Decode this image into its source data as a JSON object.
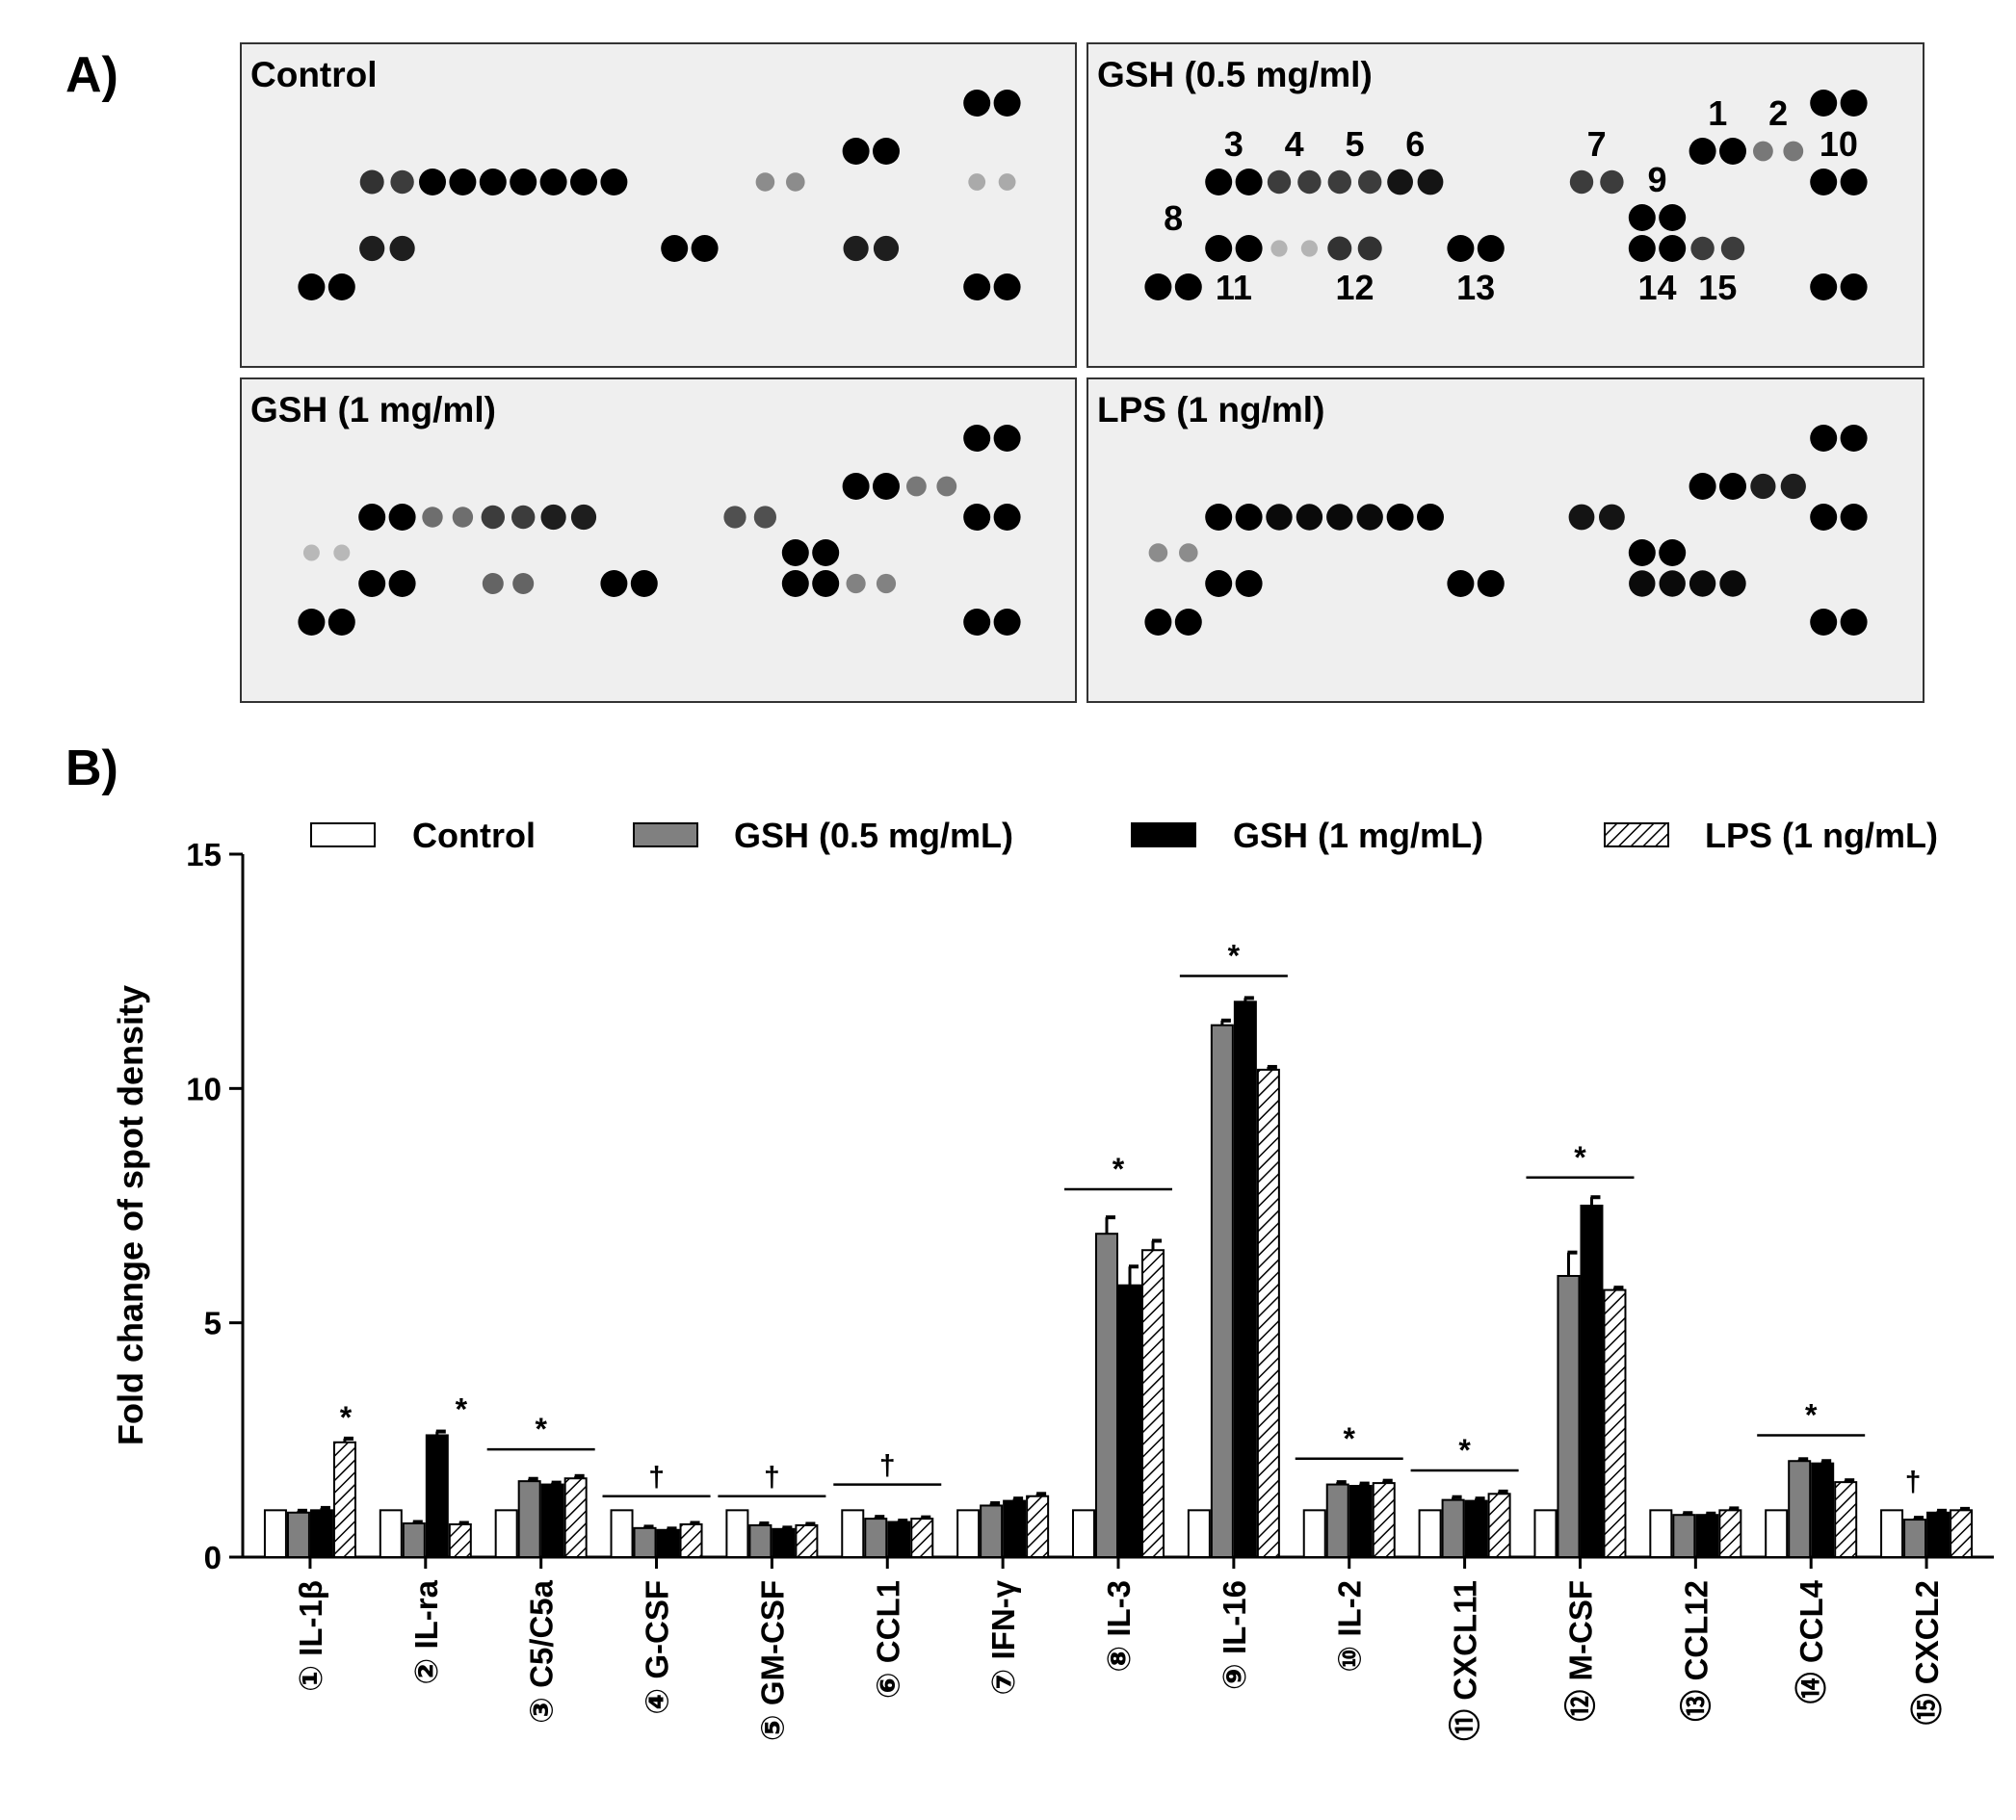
{
  "panel_a": {
    "label": "A)",
    "blots": [
      {
        "title": "Control",
        "spots": [
          {
            "col": 23,
            "row": 0,
            "i": 1.0
          },
          {
            "col": 24,
            "row": 0,
            "i": 1.0
          },
          {
            "col": 19,
            "row": 1,
            "i": 1.0
          },
          {
            "col": 20,
            "row": 1,
            "i": 1.0
          },
          {
            "col": 3,
            "row": 2,
            "i": 0.75
          },
          {
            "col": 4,
            "row": 2,
            "i": 0.7
          },
          {
            "col": 5,
            "row": 2,
            "i": 1.0
          },
          {
            "col": 6,
            "row": 2,
            "i": 1.0
          },
          {
            "col": 7,
            "row": 2,
            "i": 1.0
          },
          {
            "col": 8,
            "row": 2,
            "i": 1.0
          },
          {
            "col": 9,
            "row": 2,
            "i": 1.0
          },
          {
            "col": 10,
            "row": 2,
            "i": 1.0
          },
          {
            "col": 11,
            "row": 2,
            "i": 1.0
          },
          {
            "col": 16,
            "row": 2,
            "i": 0.3
          },
          {
            "col": 17,
            "row": 2,
            "i": 0.3
          },
          {
            "col": 23,
            "row": 2,
            "i": 0.15
          },
          {
            "col": 24,
            "row": 2,
            "i": 0.15
          },
          {
            "col": 3,
            "row": 4,
            "i": 0.85
          },
          {
            "col": 4,
            "row": 4,
            "i": 0.85
          },
          {
            "col": 13,
            "row": 4,
            "i": 1.0
          },
          {
            "col": 14,
            "row": 4,
            "i": 1.0
          },
          {
            "col": 19,
            "row": 4,
            "i": 0.85
          },
          {
            "col": 20,
            "row": 4,
            "i": 0.85
          },
          {
            "col": 1,
            "row": 5,
            "i": 1.0
          },
          {
            "col": 2,
            "row": 5,
            "i": 1.0
          },
          {
            "col": 23,
            "row": 5,
            "i": 1.0
          },
          {
            "col": 24,
            "row": 5,
            "i": 1.0
          }
        ],
        "labels": []
      },
      {
        "title": "GSH (0.5 mg/ml)",
        "spots": [
          {
            "col": 23,
            "row": 0,
            "i": 1.0
          },
          {
            "col": 24,
            "row": 0,
            "i": 1.0
          },
          {
            "col": 19,
            "row": 1,
            "i": 1.0
          },
          {
            "col": 20,
            "row": 1,
            "i": 1.0
          },
          {
            "col": 21,
            "row": 1,
            "i": 0.4
          },
          {
            "col": 22,
            "row": 1,
            "i": 0.4
          },
          {
            "col": 3,
            "row": 2,
            "i": 1.0
          },
          {
            "col": 4,
            "row": 2,
            "i": 1.0
          },
          {
            "col": 5,
            "row": 2,
            "i": 0.7
          },
          {
            "col": 6,
            "row": 2,
            "i": 0.7
          },
          {
            "col": 7,
            "row": 2,
            "i": 0.7
          },
          {
            "col": 8,
            "row": 2,
            "i": 0.7
          },
          {
            "col": 9,
            "row": 2,
            "i": 0.9
          },
          {
            "col": 10,
            "row": 2,
            "i": 0.9
          },
          {
            "col": 15,
            "row": 2,
            "i": 0.7
          },
          {
            "col": 16,
            "row": 2,
            "i": 0.7
          },
          {
            "col": 23,
            "row": 2,
            "i": 1.0
          },
          {
            "col": 24,
            "row": 2,
            "i": 1.0
          },
          {
            "col": 17,
            "row": 3,
            "i": 1.0
          },
          {
            "col": 18,
            "row": 3,
            "i": 1.0
          },
          {
            "col": 3,
            "row": 4,
            "i": 1.0
          },
          {
            "col": 4,
            "row": 4,
            "i": 1.0
          },
          {
            "col": 5,
            "row": 4,
            "i": 0.1
          },
          {
            "col": 6,
            "row": 4,
            "i": 0.1
          },
          {
            "col": 7,
            "row": 4,
            "i": 0.75
          },
          {
            "col": 8,
            "row": 4,
            "i": 0.75
          },
          {
            "col": 11,
            "row": 4,
            "i": 1.0
          },
          {
            "col": 12,
            "row": 4,
            "i": 1.0
          },
          {
            "col": 17,
            "row": 4,
            "i": 1.0
          },
          {
            "col": 18,
            "row": 4,
            "i": 1.0
          },
          {
            "col": 19,
            "row": 4,
            "i": 0.7
          },
          {
            "col": 20,
            "row": 4,
            "i": 0.7
          },
          {
            "col": 1,
            "row": 5,
            "i": 1.0
          },
          {
            "col": 2,
            "row": 5,
            "i": 1.0
          },
          {
            "col": 23,
            "row": 5,
            "i": 1.0
          },
          {
            "col": 24,
            "row": 5,
            "i": 1.0
          }
        ],
        "labels": [
          {
            "text": "1",
            "col": 19.5,
            "dy": -1.0,
            "row": 1
          },
          {
            "text": "2",
            "col": 21.5,
            "dy": -1.0,
            "row": 1
          },
          {
            "text": "10",
            "col": 23.5,
            "dy": -1.0,
            "row": 2
          },
          {
            "text": "3",
            "col": 3.5,
            "dy": -1.0,
            "row": 2
          },
          {
            "text": "4",
            "col": 5.5,
            "dy": -1.0,
            "row": 2
          },
          {
            "text": "5",
            "col": 7.5,
            "dy": -1.0,
            "row": 2
          },
          {
            "text": "6",
            "col": 9.5,
            "dy": -1.0,
            "row": 2
          },
          {
            "text": "7",
            "col": 15.5,
            "dy": -1.0,
            "row": 2
          },
          {
            "text": "9",
            "col": 17.5,
            "dy": -1.0,
            "row": 3
          },
          {
            "text": "8",
            "col": 1.5,
            "dy": -0.8,
            "row": 4
          },
          {
            "text": "11",
            "col": 3.5,
            "dy": 1.0,
            "row": 4
          },
          {
            "text": "12",
            "col": 7.5,
            "dy": 1.0,
            "row": 4
          },
          {
            "text": "13",
            "col": 11.5,
            "dy": 1.0,
            "row": 4
          },
          {
            "text": "14",
            "col": 17.5,
            "dy": 1.0,
            "row": 4
          },
          {
            "text": "15",
            "col": 19.5,
            "dy": 1.0,
            "row": 4
          }
        ]
      },
      {
        "title": "GSH (1 mg/ml)",
        "spots": [
          {
            "col": 23,
            "row": 0,
            "i": 1.0
          },
          {
            "col": 24,
            "row": 0,
            "i": 1.0
          },
          {
            "col": 19,
            "row": 1,
            "i": 1.0
          },
          {
            "col": 20,
            "row": 1,
            "i": 1.0
          },
          {
            "col": 21,
            "row": 1,
            "i": 0.4
          },
          {
            "col": 22,
            "row": 1,
            "i": 0.4
          },
          {
            "col": 3,
            "row": 2,
            "i": 1.0
          },
          {
            "col": 4,
            "row": 2,
            "i": 1.0
          },
          {
            "col": 5,
            "row": 2,
            "i": 0.45
          },
          {
            "col": 6,
            "row": 2,
            "i": 0.45
          },
          {
            "col": 7,
            "row": 2,
            "i": 0.7
          },
          {
            "col": 8,
            "row": 2,
            "i": 0.7
          },
          {
            "col": 9,
            "row": 2,
            "i": 0.85
          },
          {
            "col": 10,
            "row": 2,
            "i": 0.85
          },
          {
            "col": 15,
            "row": 2,
            "i": 0.6
          },
          {
            "col": 16,
            "row": 2,
            "i": 0.6
          },
          {
            "col": 23,
            "row": 2,
            "i": 1.0
          },
          {
            "col": 24,
            "row": 2,
            "i": 1.0
          },
          {
            "col": 17,
            "row": 3,
            "i": 1.0
          },
          {
            "col": 18,
            "row": 3,
            "i": 1.0
          },
          {
            "col": 1,
            "row": 3,
            "i": 0.08
          },
          {
            "col": 2,
            "row": 3,
            "i": 0.08
          },
          {
            "col": 3,
            "row": 4,
            "i": 1.0
          },
          {
            "col": 4,
            "row": 4,
            "i": 1.0
          },
          {
            "col": 7,
            "row": 4,
            "i": 0.5
          },
          {
            "col": 8,
            "row": 4,
            "i": 0.5
          },
          {
            "col": 11,
            "row": 4,
            "i": 1.0
          },
          {
            "col": 12,
            "row": 4,
            "i": 1.0
          },
          {
            "col": 17,
            "row": 4,
            "i": 1.0
          },
          {
            "col": 18,
            "row": 4,
            "i": 1.0
          },
          {
            "col": 19,
            "row": 4,
            "i": 0.35
          },
          {
            "col": 20,
            "row": 4,
            "i": 0.35
          },
          {
            "col": 1,
            "row": 5,
            "i": 1.0
          },
          {
            "col": 2,
            "row": 5,
            "i": 1.0
          },
          {
            "col": 23,
            "row": 5,
            "i": 1.0
          },
          {
            "col": 24,
            "row": 5,
            "i": 1.0
          }
        ],
        "labels": []
      },
      {
        "title": "LPS (1 ng/ml)",
        "spots": [
          {
            "col": 23,
            "row": 0,
            "i": 1.0
          },
          {
            "col": 24,
            "row": 0,
            "i": 1.0
          },
          {
            "col": 19,
            "row": 1,
            "i": 1.0
          },
          {
            "col": 20,
            "row": 1,
            "i": 1.0
          },
          {
            "col": 21,
            "row": 1,
            "i": 0.85
          },
          {
            "col": 22,
            "row": 1,
            "i": 0.85
          },
          {
            "col": 3,
            "row": 2,
            "i": 1.0
          },
          {
            "col": 4,
            "row": 2,
            "i": 1.0
          },
          {
            "col": 5,
            "row": 2,
            "i": 0.95
          },
          {
            "col": 6,
            "row": 2,
            "i": 0.95
          },
          {
            "col": 7,
            "row": 2,
            "i": 0.95
          },
          {
            "col": 8,
            "row": 2,
            "i": 0.95
          },
          {
            "col": 9,
            "row": 2,
            "i": 1.0
          },
          {
            "col": 10,
            "row": 2,
            "i": 1.0
          },
          {
            "col": 15,
            "row": 2,
            "i": 0.9
          },
          {
            "col": 16,
            "row": 2,
            "i": 0.9
          },
          {
            "col": 23,
            "row": 2,
            "i": 1.0
          },
          {
            "col": 24,
            "row": 2,
            "i": 1.0
          },
          {
            "col": 1,
            "row": 3,
            "i": 0.3
          },
          {
            "col": 2,
            "row": 3,
            "i": 0.3
          },
          {
            "col": 17,
            "row": 3,
            "i": 1.0
          },
          {
            "col": 18,
            "row": 3,
            "i": 1.0
          },
          {
            "col": 3,
            "row": 4,
            "i": 1.0
          },
          {
            "col": 4,
            "row": 4,
            "i": 1.0
          },
          {
            "col": 11,
            "row": 4,
            "i": 1.0
          },
          {
            "col": 12,
            "row": 4,
            "i": 1.0
          },
          {
            "col": 17,
            "row": 4,
            "i": 0.95
          },
          {
            "col": 18,
            "row": 4,
            "i": 0.95
          },
          {
            "col": 19,
            "row": 4,
            "i": 0.95
          },
          {
            "col": 20,
            "row": 4,
            "i": 0.95
          },
          {
            "col": 1,
            "row": 5,
            "i": 1.0
          },
          {
            "col": 2,
            "row": 5,
            "i": 1.0
          },
          {
            "col": 23,
            "row": 5,
            "i": 1.0
          },
          {
            "col": 24,
            "row": 5,
            "i": 1.0
          }
        ],
        "labels": []
      }
    ]
  },
  "panel_b": {
    "label": "B)"
  },
  "colors": {
    "control_fill": "#ffffff",
    "gsh05_fill": "#808080",
    "gsh1_fill": "#000000",
    "lps_hatch": "#000000",
    "blot_bg": "#efefef",
    "outline": "#000000"
  },
  "chart_data": {
    "type": "bar",
    "title": "",
    "xlabel": "",
    "ylabel": "Fold change of spot density",
    "ylim": [
      0,
      15
    ],
    "yticks": [
      "0",
      "5",
      "10",
      "15"
    ],
    "legend_position": "top",
    "categories": [
      "① IL-1β",
      "② IL-ra",
      "③ C5/C5a",
      "④ G-CSF",
      "⑤ GM-CSF",
      "⑥ CCL1",
      "⑦ IFN-γ",
      "⑧ IL-3",
      "⑨ IL-16",
      "⑩ IL-2",
      "⑪ CXCL11",
      "⑫ M-CSF",
      "⑬ CCL12",
      "⑭ CCL4",
      "⑮ CXCL2"
    ],
    "series": [
      {
        "name": "Control",
        "pattern": "white",
        "values": [
          1,
          1,
          1,
          1,
          1,
          1,
          1,
          1,
          1,
          1,
          1,
          1,
          1,
          1,
          1
        ],
        "errors": [
          0,
          0,
          0,
          0,
          0,
          0,
          0,
          0,
          0,
          0,
          0,
          0,
          0,
          0,
          0
        ]
      },
      {
        "name": "GSH (0.5 mg/mL)",
        "pattern": "gray",
        "values": [
          0.95,
          0.72,
          1.62,
          0.62,
          0.68,
          0.82,
          1.1,
          6.9,
          11.35,
          1.55,
          1.22,
          6.0,
          0.9,
          2.05,
          0.8
        ],
        "errors": [
          0.04,
          0.03,
          0.05,
          0.03,
          0.04,
          0.04,
          0.05,
          0.35,
          0.1,
          0.05,
          0.06,
          0.5,
          0.04,
          0.04,
          0.04
        ]
      },
      {
        "name": "GSH (1 mg/mL)",
        "pattern": "black",
        "values": [
          1.0,
          2.6,
          1.55,
          0.58,
          0.6,
          0.75,
          1.2,
          5.8,
          11.85,
          1.52,
          1.2,
          7.5,
          0.9,
          2.0,
          0.95
        ],
        "errors": [
          0.05,
          0.08,
          0.04,
          0.03,
          0.03,
          0.03,
          0.05,
          0.4,
          0.08,
          0.05,
          0.05,
          0.18,
          0.03,
          0.05,
          0.04
        ]
      },
      {
        "name": "LPS (1 ng/mL)",
        "pattern": "hatch",
        "values": [
          2.45,
          0.7,
          1.68,
          0.7,
          0.68,
          0.82,
          1.3,
          6.55,
          10.4,
          1.58,
          1.35,
          5.7,
          1.0,
          1.6,
          1.0
        ],
        "errors": [
          0.08,
          0.03,
          0.05,
          0.03,
          0.03,
          0.03,
          0.05,
          0.2,
          0.06,
          0.05,
          0.05,
          0.05,
          0.04,
          0.04,
          0.03
        ]
      }
    ],
    "annotations": [
      {
        "category": 0,
        "symbol": "*",
        "line": false,
        "level": 2.55
      },
      {
        "category": 1,
        "symbol": "*",
        "line": false,
        "level": 2.72
      },
      {
        "category": 2,
        "symbol": "*",
        "line": true,
        "level": 2.3
      },
      {
        "category": 3,
        "symbol": "†",
        "line": true,
        "level": 1.3
      },
      {
        "category": 4,
        "symbol": "†",
        "line": true,
        "level": 1.3
      },
      {
        "category": 5,
        "symbol": "†",
        "line": true,
        "level": 1.55
      },
      {
        "category": 7,
        "symbol": "*",
        "line": true,
        "level": 7.85
      },
      {
        "category": 8,
        "symbol": "*",
        "line": true,
        "level": 12.4
      },
      {
        "category": 9,
        "symbol": "*",
        "line": true,
        "level": 2.1
      },
      {
        "category": 10,
        "symbol": "*",
        "line": true,
        "level": 1.85
      },
      {
        "category": 11,
        "symbol": "*",
        "line": true,
        "level": 8.1
      },
      {
        "category": 13,
        "symbol": "*",
        "line": true,
        "level": 2.6
      },
      {
        "category": 14,
        "symbol": "†",
        "line": false,
        "level": 1.2
      }
    ]
  }
}
